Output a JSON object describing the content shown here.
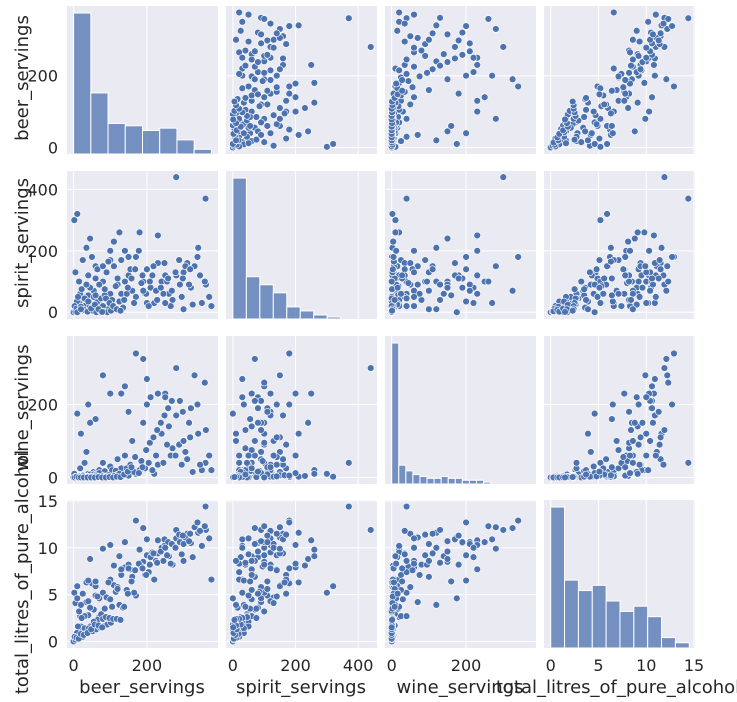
{
  "chart_data": {
    "type": "scatter",
    "kind": "pairplot",
    "variables": [
      "beer_servings",
      "spirit_servings",
      "wine_servings",
      "total_litres_of_pure_alcohol"
    ],
    "ranges": {
      "beer_servings": [
        -18,
        394
      ],
      "spirit_servings": [
        -22,
        460
      ],
      "wine_servings": [
        -18,
        388
      ],
      "total_litres_of_pure_alcohol": [
        -0.7,
        15.1
      ]
    },
    "ticks": {
      "beer_servings": [
        0,
        200
      ],
      "spirit_servings": [
        0,
        200,
        400
      ],
      "wine_servings": [
        0,
        200
      ],
      "total_litres_of_pure_alcohol": [
        0,
        5,
        10,
        15
      ]
    },
    "histograms": {
      "beer_servings": {
        "edges": [
          0,
          47,
          94,
          141,
          188,
          235,
          282,
          329,
          376
        ],
        "counts": [
          60,
          26,
          13,
          12,
          10,
          11,
          6,
          2,
          2
        ]
      },
      "spirit_servings": {
        "edges": [
          0,
          43,
          86,
          129,
          172,
          215,
          258,
          301,
          344,
          387,
          430
        ],
        "counts": [
          70,
          21,
          17,
          13,
          6,
          4,
          2,
          1,
          0,
          0,
          1
        ]
      },
      "wine_servings": {
        "edges": [
          0,
          19,
          38,
          57,
          76,
          95,
          114,
          133,
          152,
          171,
          190,
          209,
          228,
          247,
          266,
          285,
          304,
          323,
          342,
          361,
          380
        ],
        "counts": [
          75,
          10,
          7,
          5,
          4,
          3,
          3,
          4,
          3,
          3,
          2,
          2,
          2,
          1,
          0,
          0,
          0,
          0,
          0,
          0
        ]
      },
      "total_litres_of_pure_alcohol": {
        "edges": [
          0,
          1.45,
          2.9,
          4.35,
          5.8,
          7.25,
          8.7,
          10.15,
          11.6,
          13.05,
          14.5
        ],
        "counts": [
          27,
          13,
          11,
          12,
          9,
          7,
          8,
          6,
          2,
          1
        ]
      }
    },
    "records": [
      [
        0,
        0,
        0,
        0
      ],
      [
        5,
        0,
        0,
        0.1
      ],
      [
        0,
        0,
        0,
        0.0
      ],
      [
        12,
        15,
        5,
        0.6
      ],
      [
        25,
        10,
        0,
        1.0
      ],
      [
        20,
        40,
        5,
        1.6
      ],
      [
        40,
        55,
        10,
        2.8
      ],
      [
        55,
        70,
        15,
        3.4
      ],
      [
        8,
        8,
        1,
        0.3
      ],
      [
        15,
        30,
        4,
        1.2
      ],
      [
        30,
        20,
        2,
        1.4
      ],
      [
        45,
        80,
        8,
        3.6
      ],
      [
        60,
        110,
        12,
        4.9
      ],
      [
        70,
        25,
        20,
        2.6
      ],
      [
        80,
        100,
        40,
        5.2
      ],
      [
        90,
        130,
        5,
        4.7
      ],
      [
        100,
        60,
        30,
        4.5
      ],
      [
        110,
        150,
        15,
        6.0
      ],
      [
        120,
        90,
        50,
        5.8
      ],
      [
        130,
        170,
        25,
        7.1
      ],
      [
        140,
        200,
        60,
        7.9
      ],
      [
        150,
        120,
        180,
        8.2
      ],
      [
        160,
        70,
        100,
        6.9
      ],
      [
        170,
        50,
        10,
        4.9
      ],
      [
        180,
        260,
        20,
        9.8
      ],
      [
        190,
        100,
        150,
        8.5
      ],
      [
        200,
        140,
        200,
        9.2
      ],
      [
        210,
        80,
        220,
        9.0
      ],
      [
        220,
        30,
        10,
        6.6
      ],
      [
        230,
        160,
        35,
        9.4
      ],
      [
        240,
        100,
        120,
        10.0
      ],
      [
        250,
        120,
        230,
        10.3
      ],
      [
        260,
        60,
        140,
        9.1
      ],
      [
        270,
        40,
        80,
        8.2
      ],
      [
        280,
        120,
        170,
        11.0
      ],
      [
        290,
        90,
        210,
        10.6
      ],
      [
        300,
        130,
        100,
        10.4
      ],
      [
        310,
        160,
        50,
        11.5
      ],
      [
        320,
        80,
        190,
        10.5
      ],
      [
        330,
        150,
        280,
        12.2
      ],
      [
        340,
        210,
        120,
        11.6
      ],
      [
        350,
        30,
        20,
        10.2
      ],
      [
        361,
        90,
        130,
        11.9
      ],
      [
        376,
        20,
        20,
        6.6
      ],
      [
        280,
        440,
        300,
        11.9
      ],
      [
        360,
        370,
        40,
        14.4
      ],
      [
        230,
        250,
        230,
        10.8
      ],
      [
        2,
        300,
        10,
        5.2
      ],
      [
        10,
        320,
        2,
        5.9
      ],
      [
        45,
        240,
        150,
        8.8
      ],
      [
        35,
        90,
        70,
        4.2
      ],
      [
        130,
        60,
        230,
        7.7
      ],
      [
        200,
        30,
        270,
        10.9
      ],
      [
        170,
        180,
        340,
        12.9
      ],
      [
        140,
        100,
        250,
        10.6
      ],
      [
        5,
        3,
        0,
        0.2
      ],
      [
        25,
        5,
        3,
        0.5
      ],
      [
        9,
        35,
        1,
        0.9
      ],
      [
        65,
        35,
        5,
        2.3
      ],
      [
        55,
        15,
        8,
        1.7
      ],
      [
        75,
        45,
        9,
        2.9
      ],
      [
        95,
        10,
        5,
        2.4
      ],
      [
        85,
        55,
        17,
        3.5
      ],
      [
        105,
        40,
        20,
        3.7
      ],
      [
        125,
        35,
        9,
        3.9
      ],
      [
        115,
        85,
        18,
        5.3
      ],
      [
        135,
        15,
        6,
        3.6
      ],
      [
        145,
        60,
        25,
        5.5
      ],
      [
        155,
        140,
        35,
        7.7
      ],
      [
        165,
        30,
        15,
        5.2
      ],
      [
        185,
        95,
        45,
        8.0
      ],
      [
        195,
        60,
        25,
        7.1
      ],
      [
        205,
        20,
        40,
        7.4
      ],
      [
        215,
        120,
        20,
        9.5
      ],
      [
        225,
        70,
        60,
        8.6
      ],
      [
        245,
        60,
        40,
        8.6
      ],
      [
        255,
        100,
        90,
        9.2
      ],
      [
        265,
        20,
        60,
        8.3
      ],
      [
        295,
        50,
        35,
        9.3
      ],
      [
        305,
        150,
        70,
        11.1
      ],
      [
        315,
        90,
        150,
        10.7
      ],
      [
        325,
        25,
        15,
        9.0
      ],
      [
        345,
        120,
        35,
        11.8
      ],
      [
        18,
        60,
        25,
        2.7
      ],
      [
        30,
        45,
        40,
        2.7
      ],
      [
        40,
        120,
        2,
        4.3
      ],
      [
        50,
        180,
        1,
        6.2
      ],
      [
        60,
        150,
        6,
        5.9
      ],
      [
        70,
        90,
        12,
        4.6
      ],
      [
        80,
        20,
        4,
        2.4
      ],
      [
        100,
        170,
        3,
        6.6
      ],
      [
        120,
        110,
        8,
        5.6
      ],
      [
        5,
        130,
        2,
        4.1
      ],
      [
        15,
        100,
        0,
        3.2
      ],
      [
        25,
        170,
        5,
        5.1
      ],
      [
        35,
        210,
        2,
        6.3
      ],
      [
        45,
        20,
        0,
        1.6
      ],
      [
        55,
        50,
        1,
        2.1
      ],
      [
        65,
        140,
        3,
        4.8
      ],
      [
        85,
        75,
        2,
        3.5
      ],
      [
        95,
        165,
        6,
        6.3
      ],
      [
        110,
        230,
        4,
        8.1
      ],
      [
        125,
        260,
        10,
        9.1
      ],
      [
        150,
        180,
        5,
        7.8
      ],
      [
        12,
        50,
        0,
        1.6
      ],
      [
        22,
        75,
        1,
        2.5
      ],
      [
        32,
        5,
        1,
        0.8
      ],
      [
        42,
        35,
        0,
        1.4
      ],
      [
        52,
        5,
        2,
        1.1
      ],
      [
        62,
        0,
        3,
        1.3
      ],
      [
        72,
        5,
        0,
        1.5
      ],
      [
        82,
        2,
        1,
        1.6
      ],
      [
        92,
        0,
        2,
        1.8
      ],
      [
        102,
        5,
        0,
        2.0
      ],
      [
        3,
        20,
        0,
        0.5
      ],
      [
        8,
        12,
        2,
        0.4
      ],
      [
        14,
        3,
        0,
        0.3
      ],
      [
        20,
        18,
        0,
        0.8
      ],
      [
        28,
        8,
        0,
        0.7
      ],
      [
        38,
        2,
        0,
        0.9
      ],
      [
        48,
        12,
        0,
        1.3
      ],
      [
        58,
        25,
        0,
        1.8
      ],
      [
        68,
        10,
        1,
        1.7
      ],
      [
        78,
        1,
        0,
        1.5
      ],
      [
        88,
        45,
        0,
        2.6
      ],
      [
        98,
        30,
        1,
        2.5
      ],
      [
        108,
        20,
        0,
        2.4
      ],
      [
        118,
        10,
        2,
        2.4
      ],
      [
        128,
        5,
        1,
        2.3
      ],
      [
        138,
        40,
        8,
        3.7
      ],
      [
        148,
        80,
        16,
        5.1
      ],
      [
        158,
        110,
        28,
        6.4
      ],
      [
        168,
        140,
        56,
        7.6
      ],
      [
        178,
        200,
        12,
        8.3
      ],
      [
        188,
        120,
        28,
        7.8
      ],
      [
        198,
        60,
        75,
        7.1
      ],
      [
        208,
        100,
        95,
        8.2
      ],
      [
        218,
        150,
        110,
        9.4
      ],
      [
        228,
        40,
        130,
        8.4
      ],
      [
        238,
        80,
        150,
        9.6
      ],
      [
        248,
        160,
        170,
        10.9
      ],
      [
        258,
        110,
        190,
        10.6
      ],
      [
        268,
        70,
        210,
        10.4
      ],
      [
        278,
        130,
        60,
        10.0
      ],
      [
        288,
        170,
        90,
        11.4
      ],
      [
        298,
        110,
        180,
        11.3
      ],
      [
        318,
        140,
        110,
        11.5
      ],
      [
        338,
        180,
        200,
        12.7
      ],
      [
        358,
        100,
        260,
        12.3
      ],
      [
        10,
        0,
        175,
        4.6
      ],
      [
        20,
        10,
        120,
        3.9
      ],
      [
        40,
        35,
        200,
        6.5
      ],
      [
        60,
        55,
        160,
        6.4
      ],
      [
        80,
        150,
        280,
        9.9
      ],
      [
        100,
        200,
        230,
        10.3
      ],
      [
        190,
        70,
        325,
        12.1
      ],
      [
        250,
        30,
        220,
        10.0
      ],
      [
        300,
        10,
        100,
        8.6
      ],
      [
        370,
        50,
        60,
        11.0
      ]
    ]
  }
}
